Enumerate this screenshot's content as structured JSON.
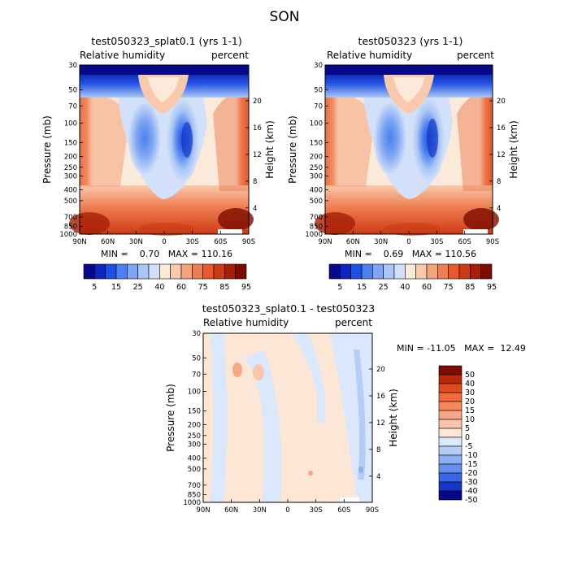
{
  "page_title": "SON",
  "panels": [
    {
      "title": "test050323_splat0.1 (yrs 1-1)",
      "left_label": "Relative humidity",
      "right_label": "percent",
      "stats": "MIN =    0.70   MAX = 110.16"
    },
    {
      "title": "test050323 (yrs 1-1)",
      "left_label": "Relative humidity",
      "right_label": "percent",
      "stats": "MIN =    0.69   MAX = 110.56"
    },
    {
      "title": "test050323_splat0.1 - test050323",
      "left_label": "Relative humidity",
      "right_label": "percent",
      "stats": "MIN = -11.05   MAX =  12.49"
    }
  ],
  "axes": {
    "ylabel": "Pressure (mb)",
    "y2label": "Height (km)",
    "pressure_ticks": [
      "30",
      "50",
      "70",
      "100",
      "150",
      "200",
      "250",
      "300",
      "400",
      "500",
      "700",
      "850",
      "1000"
    ],
    "height_ticks": [
      "20",
      "16",
      "12",
      "8",
      "4"
    ],
    "lat_ticks": [
      "90N",
      "60N",
      "30N",
      "0",
      "30S",
      "60S",
      "90S"
    ]
  },
  "colorbar_abs": {
    "labels": [
      "5",
      "15",
      "25",
      "40",
      "60",
      "75",
      "85",
      "95"
    ],
    "colors": [
      "#08088a",
      "#0d26c2",
      "#1f4fe3",
      "#4d7fee",
      "#7ea6f3",
      "#a9c6f6",
      "#d2e1f9",
      "#fbe9da",
      "#f8c9ad",
      "#f4a47d",
      "#ef7d51",
      "#e85a2d",
      "#cc3a15",
      "#a81f08",
      "#7d0c00"
    ]
  },
  "colorbar_diff": {
    "labels": [
      "50",
      "40",
      "30",
      "20",
      "15",
      "10",
      "5",
      "0",
      "-5",
      "-10",
      "-15",
      "-20",
      "-30",
      "-40",
      "-50"
    ],
    "colors": [
      "#7d0c00",
      "#b82808",
      "#e14a1d",
      "#f06a3c",
      "#f4875c",
      "#f6a784",
      "#f9c6ab",
      "#fce6d6",
      "#dbe8fb",
      "#b4cdf7",
      "#8cb1f2",
      "#6690ed",
      "#3a65e4",
      "#1637c6",
      "#08088a"
    ]
  },
  "chart_data": [
    {
      "type": "heatmap",
      "title": "test050323_splat0.1 (yrs 1-1)",
      "variable": "Relative humidity",
      "units": "percent",
      "xlabel": "",
      "ylabel": "Pressure (mb)",
      "y2label": "Height (km)",
      "x_ticks": [
        "90N",
        "60N",
        "30N",
        "0",
        "30S",
        "60S",
        "90S"
      ],
      "y_ticks": [
        30,
        50,
        70,
        100,
        150,
        200,
        250,
        300,
        400,
        500,
        700,
        850,
        1000
      ],
      "ylim": [
        1000,
        30
      ],
      "y_scale": "log",
      "min": 0.7,
      "max": 110.16,
      "contour_levels": [
        5,
        15,
        25,
        40,
        60,
        75,
        85,
        95
      ]
    },
    {
      "type": "heatmap",
      "title": "test050323 (yrs 1-1)",
      "variable": "Relative humidity",
      "units": "percent",
      "xlabel": "",
      "ylabel": "Pressure (mb)",
      "y2label": "Height (km)",
      "x_ticks": [
        "90N",
        "60N",
        "30N",
        "0",
        "30S",
        "60S",
        "90S"
      ],
      "y_ticks": [
        30,
        50,
        70,
        100,
        150,
        200,
        250,
        300,
        400,
        500,
        700,
        850,
        1000
      ],
      "ylim": [
        1000,
        30
      ],
      "y_scale": "log",
      "min": 0.69,
      "max": 110.56,
      "contour_levels": [
        5,
        15,
        25,
        40,
        60,
        75,
        85,
        95
      ]
    },
    {
      "type": "heatmap",
      "title": "test050323_splat0.1 - test050323",
      "variable": "Relative humidity",
      "units": "percent",
      "xlabel": "",
      "ylabel": "Pressure (mb)",
      "y2label": "Height (km)",
      "x_ticks": [
        "90N",
        "60N",
        "30N",
        "0",
        "30S",
        "60S",
        "90S"
      ],
      "y_ticks": [
        30,
        50,
        70,
        100,
        150,
        200,
        250,
        300,
        400,
        500,
        700,
        850,
        1000
      ],
      "ylim": [
        1000,
        30
      ],
      "y_scale": "log",
      "min": -11.05,
      "max": 12.49,
      "contour_levels": [
        -50,
        -40,
        -30,
        -20,
        -15,
        -10,
        -5,
        0,
        5,
        10,
        15,
        20,
        30,
        40,
        50
      ]
    }
  ]
}
